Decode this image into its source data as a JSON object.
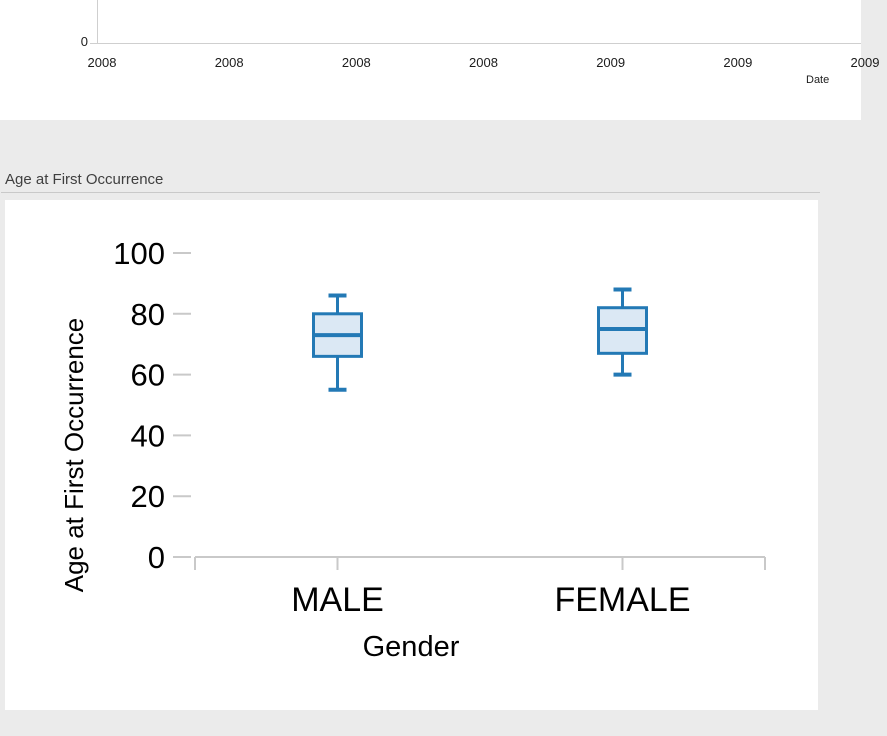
{
  "chart_data": [
    {
      "type": "line",
      "xlabel": "Date",
      "x_tick_labels": [
        "2008",
        "2008",
        "2008",
        "2008",
        "2009",
        "2009",
        "2009"
      ],
      "y_tick_labels": [
        "0"
      ]
    },
    {
      "type": "boxplot",
      "title": "Age at First Occurrence",
      "xlabel": "Gender",
      "ylabel": "Age at First Occurrence",
      "ylim": [
        0,
        100
      ],
      "y_ticks": [
        100,
        80,
        60,
        40,
        20,
        0
      ],
      "categories": [
        "MALE",
        "FEMALE"
      ],
      "series": [
        {
          "category": "MALE",
          "whisker_low": 55,
          "q1": 66,
          "median": 73,
          "q3": 80,
          "whisker_high": 86
        },
        {
          "category": "FEMALE",
          "whisker_low": 60,
          "q1": 67,
          "median": 75,
          "q3": 82,
          "whisker_high": 88
        }
      ],
      "colors": {
        "box_stroke": "#2379b5",
        "box_fill": "#dbe8f4",
        "axis": "#c9c9c9"
      }
    }
  ]
}
